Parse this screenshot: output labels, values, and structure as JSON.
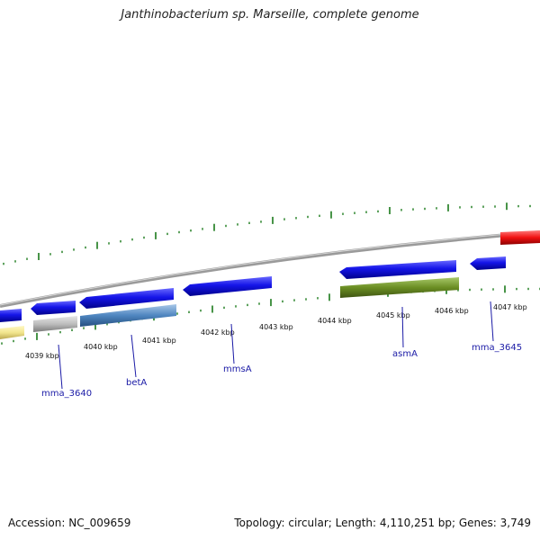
{
  "title": "Janthinobacterium sp. Marseille, complete genome",
  "accession_text": "Accession: NC_009659",
  "summary_text": "Topology: circular; Length: 4,110,251 bp; Genes: 3,749",
  "tick_labels": [
    "4039 kbp",
    "4040 kbp",
    "4041 kbp",
    "4042 kbp",
    "4043 kbp",
    "4044 kbp",
    "4045 kbp",
    "4046 kbp",
    "4047 kbp"
  ],
  "gene_labels": [
    "mma_3640",
    "betA",
    "mmsA",
    "asmA",
    "mma_3645"
  ],
  "colors": {
    "forward_cds": "#1010e0",
    "yellow_feature": "#f0e68c",
    "grey_feature": "#b8b8b8",
    "steelblue_feature": "#4f86c0",
    "olive_feature": "#6b8e23",
    "red_feature": "#e01010",
    "ticks": "#1a7a1a",
    "backbone": "#8a8a8a",
    "label": "#1a1aa6"
  }
}
